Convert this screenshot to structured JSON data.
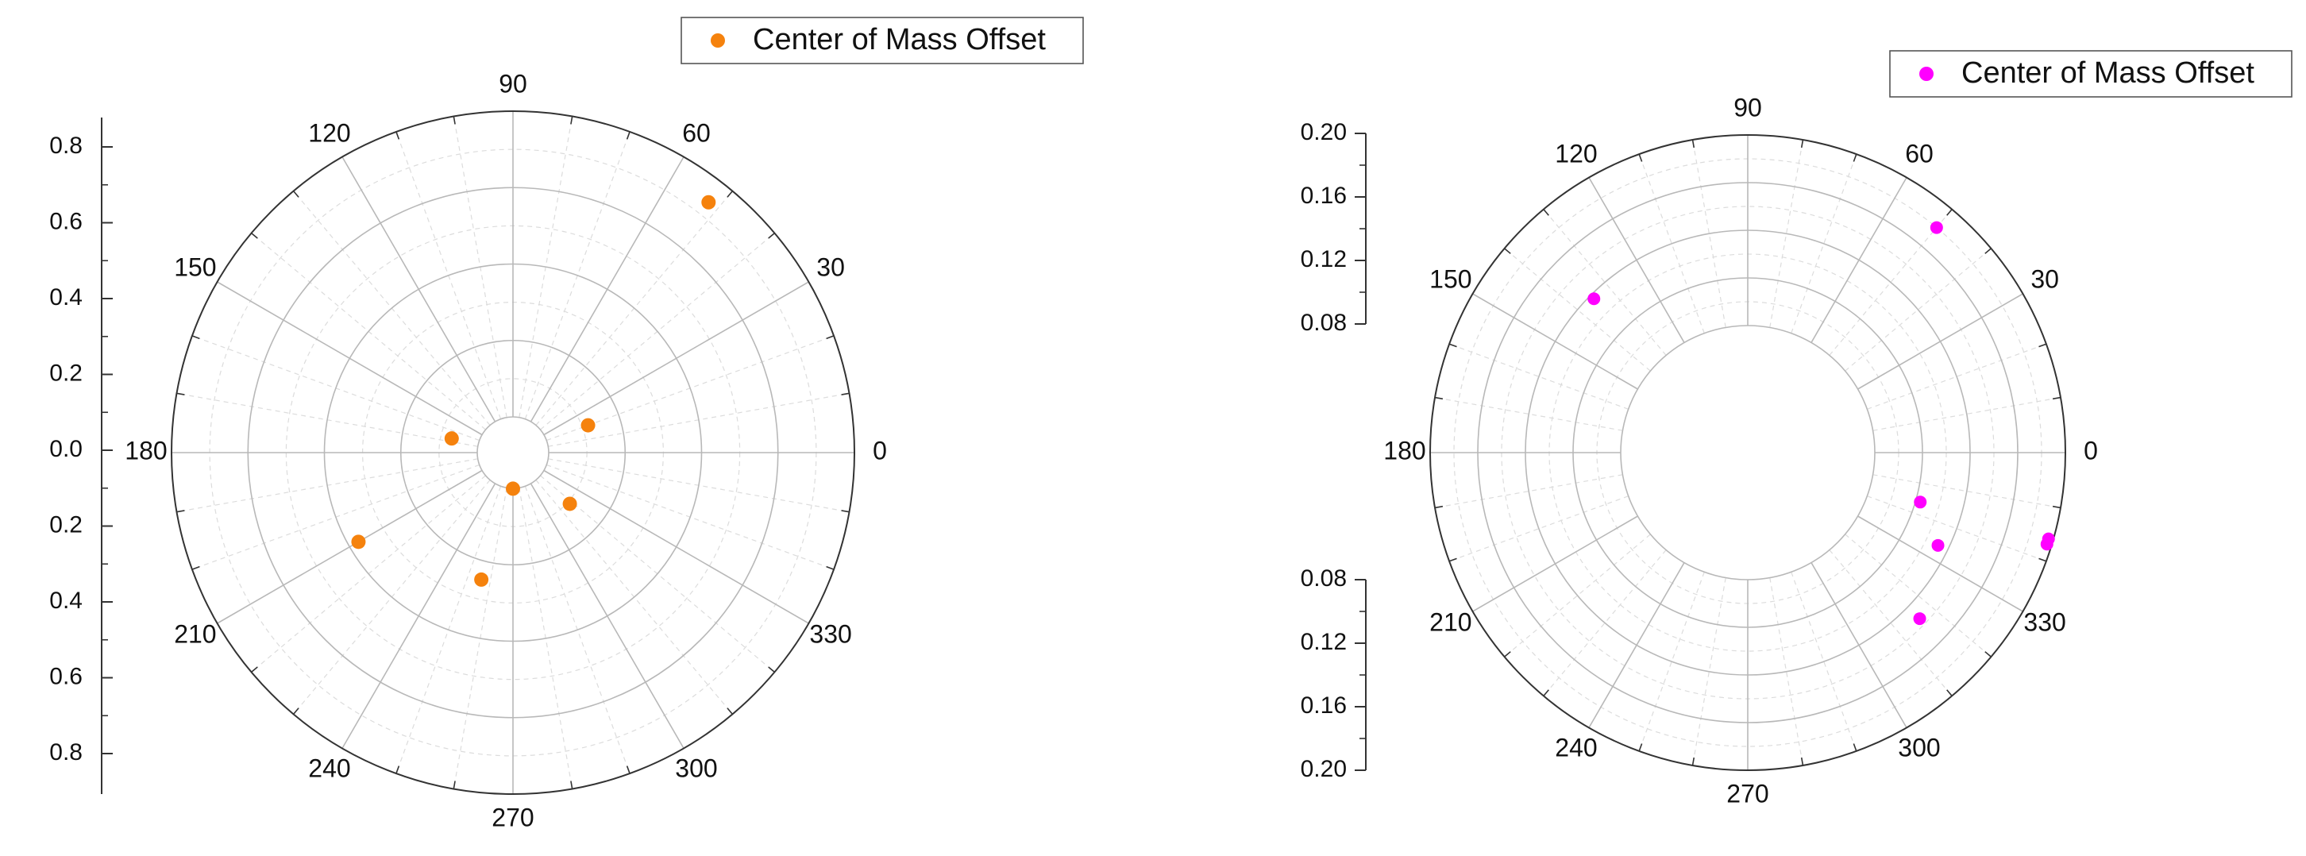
{
  "chart_data": [
    {
      "type": "scatter",
      "coordinate_system": "polar",
      "angle_unit": "degrees",
      "title": "",
      "r_range": [
        0,
        0.9
      ],
      "radial_axis_ticks": [
        0.8,
        0.6,
        0.4,
        0.2,
        0.0,
        0.2,
        0.4,
        0.6,
        0.8
      ],
      "radial_axis_tick_labels": [
        "0.8",
        "0.6",
        "0.4",
        "0.2",
        "0.0",
        "0.2",
        "0.4",
        "0.6",
        "0.8"
      ],
      "angle_tick_labels": [
        "0",
        "30",
        "60",
        "90",
        "120",
        "150",
        "180",
        "210",
        "240",
        "270",
        "300",
        "330"
      ],
      "grid": true,
      "legend_position": "top-right",
      "series": [
        {
          "name": "Center of Mass Offset",
          "color": "#f5820d",
          "marker": "circle",
          "points": [
            {
              "theta": 52,
              "r": 0.83
            },
            {
              "theta": 20,
              "r": 0.13
            },
            {
              "theta": 167,
              "r": 0.08
            },
            {
              "theta": 270,
              "r": 0.001
            },
            {
              "theta": 318,
              "r": 0.12
            },
            {
              "theta": 210,
              "r": 0.42
            },
            {
              "theta": 256,
              "r": 0.28
            }
          ]
        }
      ]
    },
    {
      "type": "scatter",
      "coordinate_system": "polar",
      "angle_unit": "degrees",
      "title": "",
      "r_range": [
        0.04,
        0.2
      ],
      "radial_axis_ticks": [
        0.2,
        0.16,
        0.12,
        0.08,
        0.08,
        0.12,
        0.16,
        0.2
      ],
      "radial_axis_tick_labels": [
        "0.20",
        "0.16",
        "0.12",
        "0.08",
        "0.08",
        "0.12",
        "0.16",
        "0.20"
      ],
      "angle_tick_labels": [
        "0",
        "30",
        "60",
        "90",
        "120",
        "150",
        "180",
        "210",
        "240",
        "270",
        "300",
        "330"
      ],
      "grid": true,
      "legend_position": "top-right",
      "series": [
        {
          "name": "Center of Mass Offset",
          "color": "#ff00ff",
          "marker": "circle",
          "points": [
            {
              "theta": 50,
              "r": 0.18
            },
            {
              "theta": 135,
              "r": 0.116
            },
            {
              "theta": 344,
              "r": 0.084
            },
            {
              "theta": 334,
              "r": 0.111
            },
            {
              "theta": 316,
              "r": 0.134
            },
            {
              "theta": 343,
              "r": 0.196
            },
            {
              "theta": 344,
              "r": 0.196
            }
          ]
        }
      ]
    }
  ]
}
